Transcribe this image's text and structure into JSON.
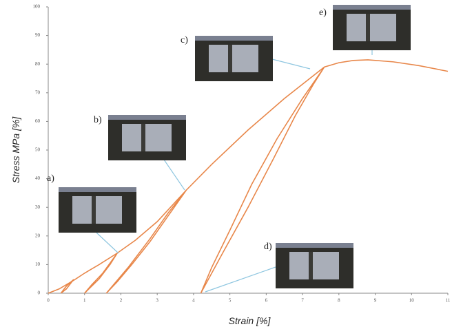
{
  "chart_data": {
    "type": "line",
    "x_label": "Strain [%]",
    "y_label": "Stress MPa [%]",
    "annotations": [
      "a)",
      "b)",
      "c)",
      "d)",
      "e)"
    ],
    "xlim": [
      0,
      11
    ],
    "xticks": [
      0,
      1,
      2,
      3,
      4,
      5,
      6,
      7,
      8,
      9,
      10,
      11
    ],
    "ylim": [
      0,
      100
    ],
    "yticks": [
      0,
      10,
      20,
      30,
      40,
      50,
      60,
      70,
      80,
      90,
      100
    ],
    "series": [
      {
        "color": "#e8874a",
        "x": [
          0,
          0.3,
          0.7,
          1.0,
          1.4,
          1.9,
          2.4,
          3.0,
          3.8,
          4.5,
          5.5,
          6.5,
          7.2,
          7.6,
          8.0,
          8.4,
          8.8,
          9.5,
          10.2,
          11
        ],
        "values": [
          0,
          1.5,
          4.5,
          7,
          10,
          14,
          18.5,
          25,
          36,
          45,
          57,
          68,
          75,
          79,
          80.5,
          81.3,
          81.5,
          80.8,
          79.5,
          77.5
        ]
      },
      {
        "color": "#e8874a",
        "x": [
          0.7,
          0.5,
          0.35,
          0.5,
          0.7
        ],
        "values": [
          4.8,
          1.5,
          0,
          2.5,
          4.8
        ]
      },
      {
        "color": "#e8874a",
        "x": [
          1.9,
          1.5,
          1.2,
          1.0,
          1.4,
          1.7,
          1.9
        ],
        "values": [
          14,
          7,
          3,
          0,
          5,
          10,
          14
        ]
      },
      {
        "color": "#e8874a",
        "x": [
          3.8,
          3.3,
          2.8,
          2.3,
          1.9,
          1.6,
          2.2,
          2.8,
          3.3,
          3.8
        ],
        "values": [
          36,
          27,
          18,
          10,
          4,
          0,
          9,
          19,
          28,
          36
        ]
      },
      {
        "color": "#e8874a",
        "x": [
          7.6,
          7.0,
          6.3,
          5.6,
          5.0,
          4.5,
          4.2,
          4.8,
          5.5,
          6.2,
          6.8,
          7.3,
          7.6
        ],
        "values": [
          79,
          68,
          54,
          38,
          22,
          9,
          0,
          14,
          30,
          47,
          62,
          73,
          79
        ]
      }
    ]
  }
}
